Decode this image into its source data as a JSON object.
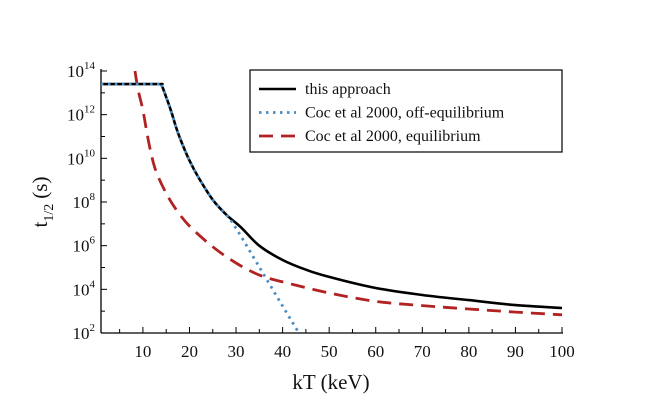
{
  "chart_data": {
    "type": "line",
    "xlabel": "kT (keV)",
    "ylabel_main": "t",
    "ylabel_sub": "1/2",
    "ylabel_unit": "(s)",
    "xlim": [
      1,
      100
    ],
    "ylim": [
      100,
      100000000000000.0
    ],
    "yscale": "log",
    "grid": false,
    "legend_position": "top-right",
    "x_ticks": [
      10,
      20,
      30,
      40,
      50,
      60,
      70,
      80,
      90,
      100
    ],
    "x_tick_labels": [
      "10",
      "20",
      "30",
      "40",
      "50",
      "60",
      "70",
      "80",
      "90",
      "100"
    ],
    "y_ticks": [
      {
        "base": "10",
        "exp": "14",
        "value": 100000000000000.0
      },
      {
        "base": "10",
        "exp": "12",
        "value": 1000000000000.0
      },
      {
        "base": "10",
        "exp": "10",
        "value": 10000000000.0
      },
      {
        "base": "10",
        "exp": "8",
        "value": 100000000.0
      },
      {
        "base": "10",
        "exp": "6",
        "value": 1000000.0
      },
      {
        "base": "10",
        "exp": "4",
        "value": 10000.0
      },
      {
        "base": "10",
        "exp": "2",
        "value": 100.0
      }
    ],
    "series": [
      {
        "name": "this approach",
        "color": "#000000",
        "style": "solid",
        "x": [
          1,
          13,
          14,
          15,
          16,
          17,
          18,
          20,
          22,
          25,
          28,
          31,
          35,
          40,
          45,
          50,
          60,
          70,
          80,
          90,
          100
        ],
        "y": [
          25000000000000.0,
          25000000000000.0,
          22000000000000.0,
          6300000000000.0,
          1600000000000.0,
          320000000000.0,
          79000000000.0,
          7900000000.0,
          1260000000.0,
          126000000.0,
          25000000.0,
          7100000.0,
          1000000.0,
          220000.0,
          79000.0,
          37000.0,
          11500.0,
          5500.0,
          3200.0,
          1900.0,
          1400.0
        ]
      },
      {
        "name": "Coc et al 2000, off-equilibrium",
        "color": "#4a8cc4",
        "style": "dotted",
        "x": [
          1,
          13,
          14,
          15,
          16,
          17,
          18,
          20,
          22,
          25,
          28,
          30,
          35,
          40,
          43.5
        ],
        "y": [
          25000000000000.0,
          25000000000000.0,
          22000000000000.0,
          6300000000000.0,
          1600000000000.0,
          320000000000.0,
          79000000000.0,
          7900000000.0,
          1260000000.0,
          126000000.0,
          25000000.0,
          6300000.0,
          105000.0,
          1700.0,
          100
        ]
      },
      {
        "name": "Coc et al 2000, equilibrium",
        "color": "#b22222",
        "style": "dashed",
        "x": [
          8.3,
          9,
          10,
          11,
          12,
          13,
          15,
          17,
          20,
          25,
          30,
          35,
          40,
          50,
          60,
          70,
          80,
          90,
          100
        ],
        "y": [
          100000000000000.0,
          12600000000000.0,
          1600000000000.0,
          100000000000.0,
          10000000000.0,
          2000000000.0,
          250000000.0,
          50000000.0,
          7900000.0,
          890000.0,
          160000.0,
          45000.0,
          22000.0,
          6800.0,
          2800.0,
          1800.0,
          1260.0,
          910.0,
          680.0
        ]
      }
    ]
  }
}
